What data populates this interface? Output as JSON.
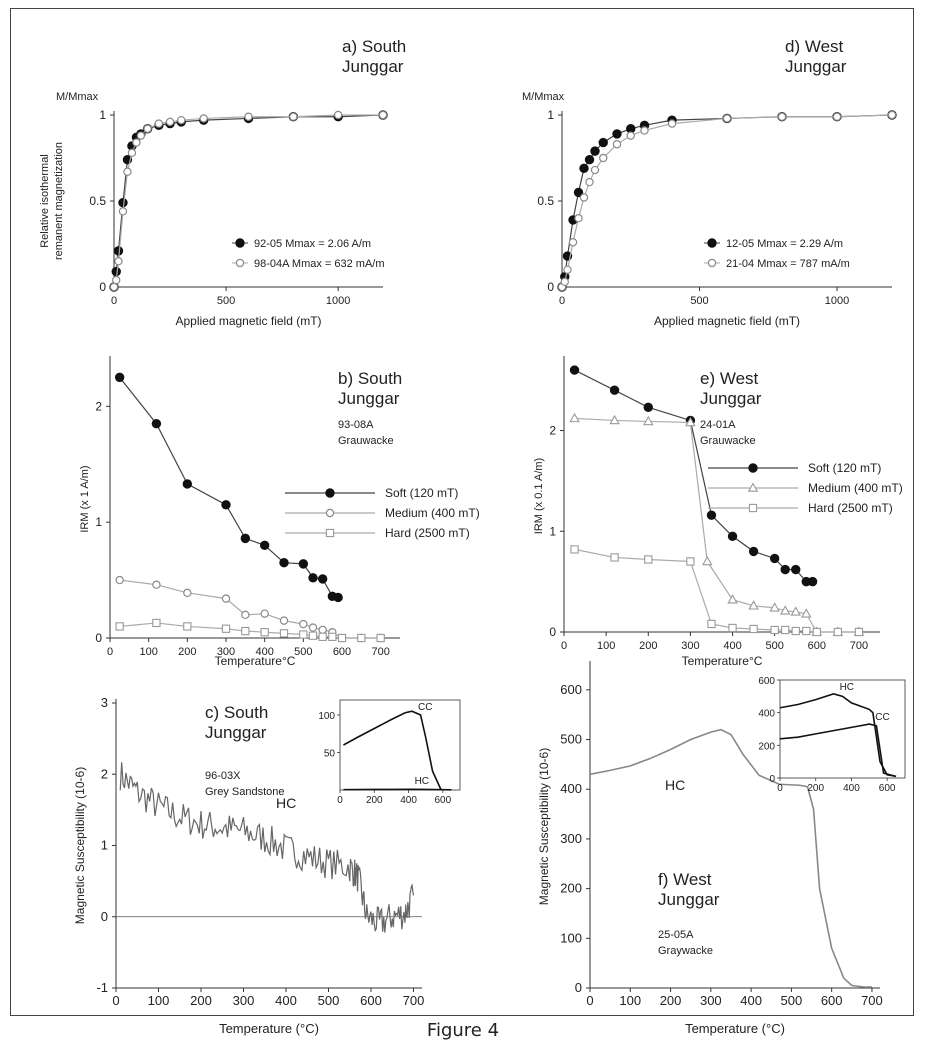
{
  "figure_caption": "Figure 4",
  "chart_data": [
    {
      "id": "a",
      "type": "line",
      "title": "a) South Junggar",
      "title_lines": [
        "a) South",
        "Junggar"
      ],
      "ylabel_top": "M/Mmax",
      "ylabel_lines": [
        "Relative isothermal",
        "remanent magnetization"
      ],
      "xlabel": "Applied magnetic field (mT)",
      "xlim": [
        0,
        1200
      ],
      "ylim": [
        0,
        1
      ],
      "xticks": [
        0,
        500,
        1000
      ],
      "yticks": [
        0,
        0.5,
        1
      ],
      "xtick_labels": [
        "0",
        "500",
        "1000"
      ],
      "ytick_labels": [
        "0",
        "0.5",
        "1"
      ],
      "grid": false,
      "legend": "center-right",
      "series": [
        {
          "name": "92-05  Mmax = 2.06 A/m",
          "marker": "filled-circle",
          "x": [
            0,
            10,
            20,
            40,
            60,
            80,
            100,
            120,
            150,
            200,
            250,
            300,
            400,
            600,
            800,
            1000,
            1200
          ],
          "y": [
            0,
            0.09,
            0.21,
            0.49,
            0.74,
            0.82,
            0.87,
            0.89,
            0.92,
            0.94,
            0.95,
            0.96,
            0.97,
            0.98,
            0.99,
            0.99,
            1.0
          ]
        },
        {
          "name": "98-04A Mmax = 632 mA/m",
          "marker": "open-circle",
          "x": [
            0,
            10,
            20,
            40,
            60,
            80,
            100,
            120,
            150,
            200,
            250,
            300,
            400,
            600,
            800,
            1000,
            1200
          ],
          "y": [
            0,
            0.04,
            0.15,
            0.44,
            0.67,
            0.78,
            0.84,
            0.88,
            0.92,
            0.95,
            0.96,
            0.97,
            0.98,
            0.99,
            0.99,
            1.0,
            1.0
          ]
        }
      ]
    },
    {
      "id": "d",
      "type": "line",
      "title": "d) West Junggar",
      "title_lines": [
        "d) West",
        "Junggar"
      ],
      "ylabel_top": "M/Mmax",
      "ylabel_lines": [],
      "xlabel": "Applied magnetic field (mT)",
      "xlim": [
        0,
        1200
      ],
      "ylim": [
        0,
        1
      ],
      "xticks": [
        0,
        500,
        1000
      ],
      "yticks": [
        0,
        0.5,
        1
      ],
      "xtick_labels": [
        "0",
        "500",
        "1000"
      ],
      "ytick_labels": [
        "0",
        "0.5",
        "1"
      ],
      "grid": false,
      "legend": "center-right",
      "series": [
        {
          "name": "12-05 Mmax = 2.29 A/m",
          "marker": "filled-circle",
          "x": [
            0,
            10,
            20,
            40,
            60,
            80,
            100,
            120,
            150,
            200,
            250,
            300,
            400,
            600,
            800,
            1000,
            1200
          ],
          "y": [
            0,
            0.06,
            0.18,
            0.39,
            0.55,
            0.69,
            0.74,
            0.79,
            0.84,
            0.89,
            0.92,
            0.94,
            0.97,
            0.98,
            0.99,
            0.99,
            1.0
          ]
        },
        {
          "name": "21-04 Mmax = 787 mA/m",
          "marker": "open-circle",
          "x": [
            0,
            10,
            20,
            40,
            60,
            80,
            100,
            120,
            150,
            200,
            250,
            300,
            400,
            600,
            800,
            1000,
            1200
          ],
          "y": [
            0,
            0.03,
            0.1,
            0.26,
            0.4,
            0.52,
            0.61,
            0.68,
            0.75,
            0.83,
            0.88,
            0.91,
            0.95,
            0.98,
            0.99,
            0.99,
            1.0
          ]
        }
      ]
    },
    {
      "id": "b",
      "type": "line",
      "title": "b) South Junggar",
      "title_lines": [
        "b) South",
        "Junggar"
      ],
      "annotation_lines": [
        "93-08A",
        "Grauwacke"
      ],
      "ylabel": "IRM (x  1 A/m)",
      "xlabel": "Temperature°C",
      "xlim": [
        0,
        750
      ],
      "ylim": [
        0,
        2.4
      ],
      "xticks": [
        0,
        100,
        200,
        300,
        400,
        500,
        600,
        700
      ],
      "yticks": [
        0,
        1,
        2
      ],
      "xtick_labels": [
        "0",
        "100",
        "200",
        "300",
        "400",
        "500",
        "600",
        "700"
      ],
      "ytick_labels": [
        "0",
        "1",
        "2"
      ],
      "grid": false,
      "legend": "center-right",
      "series": [
        {
          "name": "Soft (120 mT)",
          "marker": "filled-circle",
          "x": [
            25,
            120,
            200,
            300,
            350,
            400,
            450,
            500,
            525,
            550,
            575,
            590
          ],
          "y": [
            2.25,
            1.85,
            1.33,
            1.15,
            0.86,
            0.8,
            0.65,
            0.64,
            0.52,
            0.51,
            0.36,
            0.35
          ]
        },
        {
          "name": "Medium (400 mT)",
          "marker": "open-circle",
          "x": [
            25,
            120,
            200,
            300,
            350,
            400,
            450,
            500,
            525,
            550,
            575,
            600,
            650,
            700
          ],
          "y": [
            0.5,
            0.46,
            0.39,
            0.34,
            0.2,
            0.21,
            0.15,
            0.12,
            0.09,
            0.07,
            0.05,
            0.0,
            0.0,
            0.0
          ]
        },
        {
          "name": "Hard (2500 mT)",
          "marker": "open-square",
          "x": [
            25,
            120,
            200,
            300,
            350,
            400,
            450,
            500,
            525,
            550,
            575,
            600,
            650,
            700
          ],
          "y": [
            0.1,
            0.13,
            0.1,
            0.08,
            0.06,
            0.05,
            0.04,
            0.03,
            0.02,
            0.01,
            0.01,
            0.0,
            0.0,
            0.0
          ]
        }
      ]
    },
    {
      "id": "e",
      "type": "line",
      "title": "e) West Junggar",
      "title_lines": [
        "e) West",
        "Junggar"
      ],
      "annotation_lines": [
        "24-01A",
        "Grauwacke"
      ],
      "ylabel": "IRM (x 0.1 A/m)",
      "xlabel": "Temperature°C",
      "xlim": [
        0,
        750
      ],
      "ylim": [
        0,
        2.7
      ],
      "xticks": [
        0,
        100,
        200,
        300,
        400,
        500,
        600,
        700
      ],
      "yticks": [
        0,
        1,
        2
      ],
      "xtick_labels": [
        "0",
        "100",
        "200",
        "300",
        "400",
        "500",
        "600",
        "700"
      ],
      "ytick_labels": [
        "0",
        "1",
        "2"
      ],
      "grid": false,
      "legend": "center-right",
      "series": [
        {
          "name": "Soft (120 mT)",
          "marker": "filled-circle",
          "x": [
            25,
            120,
            200,
            300,
            350,
            400,
            450,
            500,
            525,
            550,
            575,
            590
          ],
          "y": [
            2.6,
            2.4,
            2.23,
            2.1,
            1.16,
            0.95,
            0.8,
            0.73,
            0.62,
            0.62,
            0.5,
            0.5
          ]
        },
        {
          "name": "Medium (400 mT)",
          "marker": "open-triangle",
          "x": [
            25,
            120,
            200,
            300,
            340,
            400,
            450,
            500,
            525,
            550,
            575,
            600,
            650,
            700
          ],
          "y": [
            2.12,
            2.1,
            2.09,
            2.08,
            0.7,
            0.32,
            0.26,
            0.24,
            0.21,
            0.2,
            0.18,
            0.0,
            0.0,
            0.0
          ]
        },
        {
          "name": "Hard (2500 mT)",
          "marker": "open-square",
          "x": [
            25,
            120,
            200,
            300,
            350,
            400,
            450,
            500,
            525,
            550,
            575,
            600,
            650,
            700
          ],
          "y": [
            0.82,
            0.74,
            0.72,
            0.7,
            0.08,
            0.04,
            0.03,
            0.02,
            0.02,
            0.01,
            0.01,
            0.0,
            0.0,
            0.0
          ]
        }
      ]
    },
    {
      "id": "c",
      "type": "line",
      "title": "c) South Junggar",
      "title_lines": [
        "c) South",
        "Junggar"
      ],
      "annotation_lines": [
        "96-03X",
        "Grey Sandstone"
      ],
      "curve_label": "HC",
      "ylabel": "Magnetic Susceptibility (10-6)",
      "xlabel": "Temperature (°C)",
      "xlim": [
        0,
        720
      ],
      "ylim": [
        -1,
        3
      ],
      "xticks": [
        0,
        100,
        200,
        300,
        400,
        500,
        600,
        700
      ],
      "yticks": [
        -1,
        0,
        1,
        2,
        3
      ],
      "xtick_labels": [
        "0",
        "100",
        "200",
        "300",
        "400",
        "500",
        "600",
        "700"
      ],
      "ytick_labels": [
        "-1",
        "0",
        "1",
        "2",
        "3"
      ],
      "grid": false,
      "legend": "none",
      "zero_line": true,
      "series": [
        {
          "name": "HC",
          "noisy": true,
          "x": [
            10,
            50,
            100,
            150,
            200,
            250,
            300,
            350,
            400,
            450,
            500,
            550,
            570,
            590,
            620,
            650,
            680,
            700
          ],
          "y": [
            2.0,
            1.75,
            1.55,
            1.4,
            1.3,
            1.25,
            1.2,
            1.1,
            0.95,
            0.85,
            0.75,
            0.7,
            0.55,
            0.0,
            -0.1,
            0.0,
            0.05,
            0.3
          ]
        }
      ],
      "inset": {
        "xlim": [
          0,
          700
        ],
        "ylim": [
          0,
          120
        ],
        "xticks": [
          0,
          200,
          400,
          600
        ],
        "yticks": [
          50,
          100
        ],
        "xtick_labels": [
          "0",
          "200",
          "400",
          "600"
        ],
        "ytick_labels": [
          "50",
          "100"
        ],
        "series": [
          {
            "name": "CC",
            "x": [
              20,
              100,
              200,
              300,
              380,
              420,
              470,
              500,
              540,
              590
            ],
            "y": [
              60,
              70,
              82,
              94,
              103,
              105,
              100,
              70,
              25,
              0
            ]
          },
          {
            "name": "HC",
            "x": [
              20,
              100,
              200,
              300,
              400,
              500,
              600,
              650
            ],
            "y": [
              0.5,
              0.6,
              0.7,
              0.8,
              0.9,
              0.8,
              0.4,
              0.2
            ]
          }
        ]
      }
    },
    {
      "id": "f",
      "type": "line",
      "title": "f) West Junggar",
      "title_lines": [
        "f) West",
        "Junggar"
      ],
      "annotation_lines": [
        "25-05A",
        "Graywacke"
      ],
      "curve_label": "HC",
      "ylabel": "Magnetic Susceptibility (10-6)",
      "xlabel": "Temperature (°C)",
      "xlim": [
        0,
        720
      ],
      "ylim": [
        0,
        650
      ],
      "xticks": [
        0,
        100,
        200,
        300,
        400,
        500,
        600,
        700
      ],
      "yticks": [
        0,
        100,
        200,
        300,
        400,
        500,
        600
      ],
      "xtick_labels": [
        "0",
        "100",
        "200",
        "300",
        "400",
        "500",
        "600",
        "700"
      ],
      "ytick_labels": [
        "0",
        "100",
        "200",
        "300",
        "400",
        "500",
        "600"
      ],
      "grid": false,
      "legend": "none",
      "series": [
        {
          "name": "HC",
          "x": [
            0,
            50,
            100,
            150,
            200,
            250,
            300,
            325,
            350,
            380,
            420,
            470,
            520,
            540,
            555,
            570,
            600,
            630,
            650,
            680,
            700
          ],
          "y": [
            430,
            438,
            447,
            462,
            480,
            500,
            515,
            520,
            510,
            470,
            428,
            410,
            408,
            405,
            360,
            200,
            80,
            20,
            5,
            2,
            2
          ]
        }
      ],
      "inset": {
        "xlim": [
          0,
          700
        ],
        "ylim": [
          0,
          600
        ],
        "xticks": [
          0,
          200,
          400,
          600
        ],
        "yticks": [
          0,
          200,
          400,
          600
        ],
        "xtick_labels": [
          "0",
          "200",
          "400",
          "600"
        ],
        "ytick_labels": [
          "0",
          "200",
          "400",
          "600"
        ],
        "series": [
          {
            "name": "HC",
            "x": [
              0,
              100,
              200,
              300,
              350,
              400,
              450,
              500,
              520,
              560,
              600,
              650
            ],
            "y": [
              430,
              450,
              480,
              515,
              500,
              460,
              440,
              420,
              400,
              100,
              20,
              10
            ]
          },
          {
            "name": "CC",
            "x": [
              0,
              100,
              200,
              300,
              400,
              450,
              500,
              540,
              580,
              650
            ],
            "y": [
              240,
              250,
              270,
              290,
              310,
              320,
              330,
              320,
              30,
              10
            ]
          }
        ]
      }
    }
  ]
}
